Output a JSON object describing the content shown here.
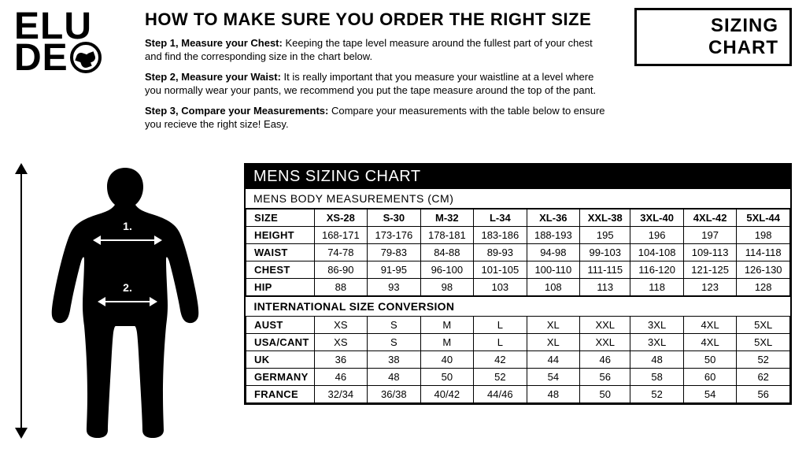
{
  "brand": {
    "line1": "ELU",
    "line2": "DE"
  },
  "badge": "SIZING CHART",
  "instructions": {
    "title": "HOW TO MAKE SURE YOU ORDER THE RIGHT SIZE",
    "step1_label": "Step 1, Measure your Chest:",
    "step1_text": " Keeping the tape level measure around the fullest part of your chest and find the corresponding size in the chart below.",
    "step2_label": "Step 2, Measure your Waist:",
    "step2_text": " It is really important that you measure your waistline at a level where you normally wear your pants, we recommend you put the tape measure around the top of the pant.",
    "step3_label": "Step 3, Compare your Measurements:",
    "step3_text": " Compare your measurements with the table below to ensure you recieve the right size! Easy."
  },
  "silhouette": {
    "m1": "1.",
    "m2": "2."
  },
  "chart": {
    "title": "MENS SIZING CHART",
    "sub1": "MENS BODY MEASUREMENTS (CM)",
    "columns": [
      "SIZE",
      "XS-28",
      "S-30",
      "M-32",
      "L-34",
      "XL-36",
      "XXL-38",
      "3XL-40",
      "4XL-42",
      "5XL-44"
    ],
    "rows": [
      [
        "HEIGHT",
        "168-171",
        "173-176",
        "178-181",
        "183-186",
        "188-193",
        "195",
        "196",
        "197",
        "198"
      ],
      [
        "WAIST",
        "74-78",
        "79-83",
        "84-88",
        "89-93",
        "94-98",
        "99-103",
        "104-108",
        "109-113",
        "114-118"
      ],
      [
        "CHEST",
        "86-90",
        "91-95",
        "96-100",
        "101-105",
        "100-110",
        "111-115",
        "116-120",
        "121-125",
        "126-130"
      ],
      [
        "HIP",
        "88",
        "93",
        "98",
        "103",
        "108",
        "113",
        "118",
        "123",
        "128"
      ]
    ],
    "sub2": "INTERNATIONAL SIZE CONVERSION",
    "rows2": [
      [
        "AUST",
        "XS",
        "S",
        "M",
        "L",
        "XL",
        "XXL",
        "3XL",
        "4XL",
        "5XL"
      ],
      [
        "USA/CANT",
        "XS",
        "S",
        "M",
        "L",
        "XL",
        "XXL",
        "3XL",
        "4XL",
        "5XL"
      ],
      [
        "UK",
        "36",
        "38",
        "40",
        "42",
        "44",
        "46",
        "48",
        "50",
        "52"
      ],
      [
        "GERMANY",
        "46",
        "48",
        "50",
        "52",
        "54",
        "56",
        "58",
        "60",
        "62"
      ],
      [
        "FRANCE",
        "32/34",
        "36/38",
        "40/42",
        "44/46",
        "48",
        "50",
        "52",
        "54",
        "56"
      ]
    ]
  },
  "style": {
    "col_count": 10,
    "header_bg": "#000000",
    "header_fg": "#ffffff",
    "border_color": "#000000",
    "body_font_size": 13
  }
}
